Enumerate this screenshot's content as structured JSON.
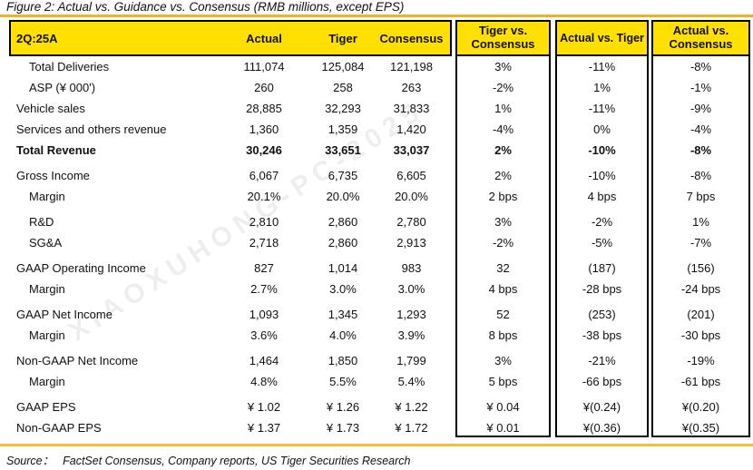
{
  "figure_title": "Figure 2: Actual vs. Guidance vs. Consensus (RMB millions, except EPS)",
  "table": {
    "period": "2Q:25A",
    "columns": {
      "actual": "Actual",
      "tiger": "Tiger",
      "consensus": "Consensus",
      "tiger_vs_consensus": "Tiger vs. Consensus",
      "actual_vs_tiger": "Actual vs. Tiger",
      "actual_vs_consensus": "Actual vs. Consensus"
    },
    "rows": [
      {
        "label": "Total Deliveries",
        "indent": true,
        "bold": false,
        "gap": false,
        "actual": "111,074",
        "tiger": "125,084",
        "consensus": "121,198",
        "tvc": "3%",
        "avt": "-11%",
        "avc": "-8%"
      },
      {
        "label": "ASP (¥ 000')",
        "indent": true,
        "bold": false,
        "gap": false,
        "actual": "260",
        "tiger": "258",
        "consensus": "263",
        "tvc": "-2%",
        "avt": "1%",
        "avc": "-1%"
      },
      {
        "label": "Vehicle sales",
        "indent": false,
        "bold": false,
        "gap": false,
        "actual": "28,885",
        "tiger": "32,293",
        "consensus": "31,833",
        "tvc": "1%",
        "avt": "-11%",
        "avc": "-9%"
      },
      {
        "label": "Services and others revenue",
        "indent": false,
        "bold": false,
        "gap": false,
        "actual": "1,360",
        "tiger": "1,359",
        "consensus": "1,420",
        "tvc": "-4%",
        "avt": "0%",
        "avc": "-4%"
      },
      {
        "label": "Total Revenue",
        "indent": false,
        "bold": true,
        "gap": true,
        "actual": "30,246",
        "tiger": "33,651",
        "consensus": "33,037",
        "tvc": "2%",
        "avt": "-10%",
        "avc": "-8%"
      },
      {
        "label": "Gross Income",
        "indent": false,
        "bold": false,
        "gap": false,
        "actual": "6,067",
        "tiger": "6,735",
        "consensus": "6,605",
        "tvc": "2%",
        "avt": "-10%",
        "avc": "-8%"
      },
      {
        "label": "Margin",
        "indent": true,
        "bold": false,
        "gap": true,
        "actual": "20.1%",
        "tiger": "20.0%",
        "consensus": "20.0%",
        "tvc": "2 bps",
        "avt": "4 bps",
        "avc": "7 bps"
      },
      {
        "label": "R&D",
        "indent": true,
        "bold": false,
        "gap": false,
        "actual": "2,810",
        "tiger": "2,860",
        "consensus": "2,780",
        "tvc": "3%",
        "avt": "-2%",
        "avc": "1%"
      },
      {
        "label": "SG&A",
        "indent": true,
        "bold": false,
        "gap": true,
        "actual": "2,718",
        "tiger": "2,860",
        "consensus": "2,913",
        "tvc": "-2%",
        "avt": "-5%",
        "avc": "-7%"
      },
      {
        "label": "GAAP Operating Income",
        "indent": false,
        "bold": false,
        "gap": false,
        "actual": "827",
        "tiger": "1,014",
        "consensus": "983",
        "tvc": "32",
        "avt": "(187)",
        "avc": "(156)"
      },
      {
        "label": "Margin",
        "indent": true,
        "bold": false,
        "gap": true,
        "actual": "2.7%",
        "tiger": "3.0%",
        "consensus": "3.0%",
        "tvc": "4 bps",
        "avt": "-28 bps",
        "avc": "-24 bps"
      },
      {
        "label": "GAAP Net Income",
        "indent": false,
        "bold": false,
        "gap": false,
        "actual": "1,093",
        "tiger": "1,345",
        "consensus": "1,293",
        "tvc": "52",
        "avt": "(253)",
        "avc": "(201)"
      },
      {
        "label": "Margin",
        "indent": true,
        "bold": false,
        "gap": true,
        "actual": "3.6%",
        "tiger": "4.0%",
        "consensus": "3.9%",
        "tvc": "8 bps",
        "avt": "-38 bps",
        "avc": "-30 bps"
      },
      {
        "label": "Non-GAAP Net Income",
        "indent": false,
        "bold": false,
        "gap": false,
        "actual": "1,464",
        "tiger": "1,850",
        "consensus": "1,799",
        "tvc": "3%",
        "avt": "-21%",
        "avc": "-19%"
      },
      {
        "label": "Margin",
        "indent": true,
        "bold": false,
        "gap": true,
        "actual": "4.8%",
        "tiger": "5.5%",
        "consensus": "5.4%",
        "tvc": "5 bps",
        "avt": "-66 bps",
        "avc": "-61 bps"
      },
      {
        "label": "GAAP EPS",
        "indent": false,
        "bold": false,
        "gap": false,
        "actual": "¥ 1.02",
        "tiger": "¥ 1.26",
        "consensus": "¥ 1.22",
        "tvc": "¥ 0.04",
        "avt": "¥(0.24)",
        "avc": "¥(0.20)"
      },
      {
        "label": "Non-GAAP EPS",
        "indent": false,
        "bold": false,
        "gap": false,
        "actual": "¥ 1.37",
        "tiger": "¥ 1.73",
        "consensus": "¥ 1.72",
        "tvc": "¥ 0.01",
        "avt": "¥(0.36)",
        "avc": "¥(0.35)"
      }
    ]
  },
  "footer": {
    "source_label": "Source：",
    "source_text": "FactSet Consensus, Company reports, US Tiger Securities Research"
  },
  "watermark_text": "XIAOXUHONG-PC-2025",
  "colors": {
    "header_yellow": "#FFE000",
    "gold_line": "#E9B41C",
    "border_black": "#000000",
    "text": "#111111"
  }
}
